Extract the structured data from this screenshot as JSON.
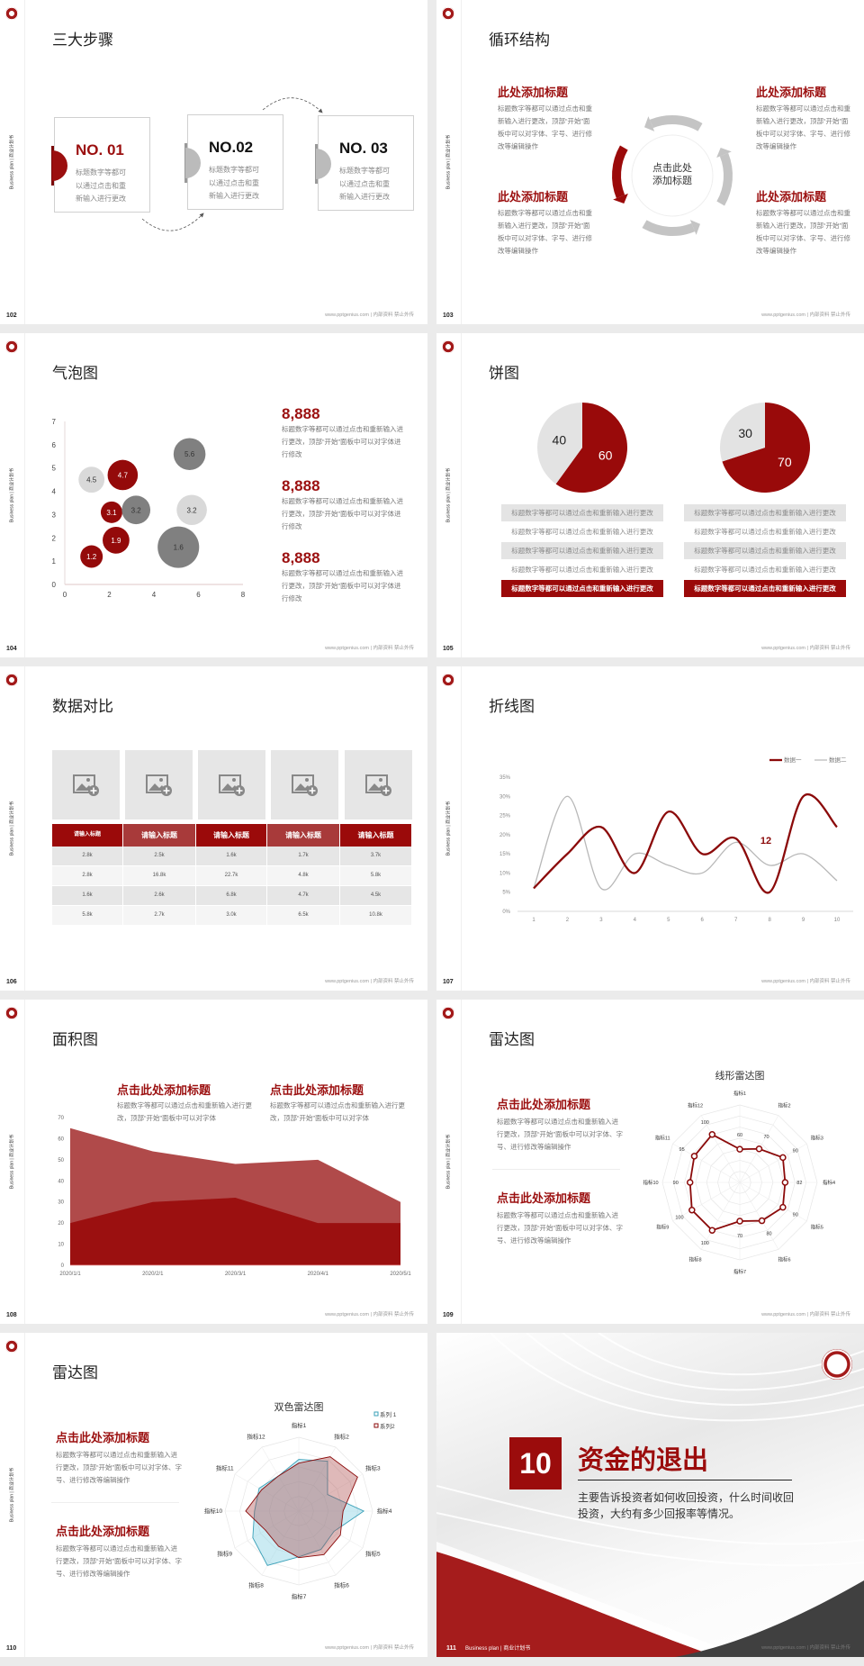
{
  "footer": {
    "url": "www.pptgenius.com | 内部资料 禁止外传",
    "side_label": "Business plan | 商业计划书"
  },
  "colors": {
    "accent": "#9b0f0f",
    "gray": "#bbbbbb",
    "dark_gray": "#808080",
    "light_gray": "#d9d9d9",
    "cyan": "#3aa0b8"
  },
  "slides": {
    "s102": {
      "page": "102",
      "title": "三大步骤",
      "steps": [
        {
          "no": "NO. 01",
          "text": "标题数字等都可以通过点击和重新输入进行更改",
          "active": true
        },
        {
          "no": "NO.02",
          "text": "标题数字等都可以通过点击和重新输入进行更改",
          "active": false
        },
        {
          "no": "NO. 03",
          "text": "标题数字等都可以通过点击和重新输入进行更改",
          "active": false
        }
      ]
    },
    "s103": {
      "page": "103",
      "title": "循环结构",
      "center": "点击此处添加标题",
      "blocks": [
        {
          "title": "此处添加标题",
          "text": "标题数字等都可以通过点击和重新输入进行更改，顶部“开始”面板中可以对字体、字号、进行修改等编辑操作"
        },
        {
          "title": "此处添加标题",
          "text": "标题数字等都可以通过点击和重新输入进行更改，顶部“开始”面板中可以对字体、字号、进行修改等编辑操作"
        },
        {
          "title": "此处添加标题",
          "text": "标题数字等都可以通过点击和重新输入进行更改，顶部“开始”面板中可以对字体、字号、进行修改等编辑操作"
        },
        {
          "title": "此处添加标题",
          "text": "标题数字等都可以通过点击和重新输入进行更改，顶部“开始”面板中可以对字体、字号、进行修改等编辑操作"
        }
      ]
    },
    "s104": {
      "page": "104",
      "title": "气泡图",
      "stats": [
        {
          "value": "8,888",
          "text": "标题数字等都可以通过点击和重新输入进行更改，顶部“开始”面板中可以对字体进行修改"
        },
        {
          "value": "8,888",
          "text": "标题数字等都可以通过点击和重新输入进行更改，顶部“开始”面板中可以对字体进行修改"
        },
        {
          "value": "8,888",
          "text": "标题数字等都可以通过点击和重新输入进行更改，顶部“开始”面板中可以对字体进行修改"
        }
      ]
    },
    "s105": {
      "page": "105",
      "title": "饼图",
      "rows_left": [
        "标题数字等都可以通过点击和重新输入进行更改",
        "标题数字等都可以通过点击和重新输入进行更改",
        "标题数字等都可以通过点击和重新输入进行更改",
        "标题数字等都可以通过点击和重新输入进行更改",
        "标题数字等都可以通过点击和重新输入进行更改"
      ],
      "rows_right": [
        "标题数字等都可以通过点击和重新输入进行更改",
        "标题数字等都可以通过点击和重新输入进行更改",
        "标题数字等都可以通过点击和重新输入进行更改",
        "标题数字等都可以通过点击和重新输入进行更改",
        "标题数字等都可以通过点击和重新输入进行更改"
      ]
    },
    "s106": {
      "page": "106",
      "title": "数据对比",
      "table": {
        "headers": [
          "请输入标题",
          "请输入标题",
          "请输入标题",
          "请输入标题",
          "请输入标题"
        ],
        "rows": [
          [
            "2.8k",
            "2.5k",
            "1.6k",
            "1.7k",
            "3.7k"
          ],
          [
            "2.8k",
            "16.8k",
            "22.7k",
            "4.8k",
            "5.8k"
          ],
          [
            "1.6k",
            "2.6k",
            "6.8k",
            "4.7k",
            "4.5k"
          ],
          [
            "5.8k",
            "2.7k",
            "3.0k",
            "6.5k",
            "10.8k"
          ]
        ]
      }
    },
    "s107": {
      "page": "107",
      "title": "折线图"
    },
    "s108": {
      "page": "108",
      "title": "面积图",
      "blocks": [
        {
          "title": "点击此处添加标题",
          "text": "标题数字等都可以通过点击和重新输入进行更改，顶部“开始”面板中可以对字体"
        },
        {
          "title": "点击此处添加标题",
          "text": "标题数字等都可以通过点击和重新输入进行更改，顶部“开始”面板中可以对字体"
        }
      ]
    },
    "s109": {
      "page": "109",
      "title": "雷达图",
      "blocks": [
        {
          "title": "点击此处添加标题",
          "text": "标题数字等都可以通过点击和重新输入进行更改，顶部“开始”面板中可以对字体、字号、进行修改等编辑操作"
        },
        {
          "title": "点击此处添加标题",
          "text": "标题数字等都可以通过点击和重新输入进行更改，顶部“开始”面板中可以对字体、字号、进行修改等编辑操作"
        }
      ]
    },
    "s110": {
      "page": "110",
      "title": "雷达图",
      "blocks": [
        {
          "title": "点击此处添加标题",
          "text": "标题数字等都可以通过点击和重新输入进行更改，顶部“开始”面板中可以对字体、字号、进行修改等编辑操作"
        },
        {
          "title": "点击此处添加标题",
          "text": "标题数字等都可以通过点击和重新输入进行更改，顶部“开始”面板中可以对字体、字号、进行修改等编辑操作"
        }
      ]
    },
    "s111": {
      "page": "111",
      "number": "10",
      "title": "资金的退出",
      "text": "主要告诉投资者如何收回投资，什么时间收回投资，大约有多少回报率等情况。",
      "footer_label": "Business plan | 商业计划书"
    }
  },
  "chart_data": [
    {
      "id": "bubble",
      "type": "scatter",
      "xlim": [
        0,
        8
      ],
      "ylim": [
        0,
        7
      ],
      "xticks": [
        "0",
        "2",
        "4",
        "6",
        "8"
      ],
      "yticks": [
        "0",
        "1",
        "2",
        "3",
        "4",
        "5",
        "6",
        "7"
      ],
      "points": [
        {
          "x": 1.2,
          "y": 4.5,
          "size": 3.0,
          "label": "4.5",
          "color": "light"
        },
        {
          "x": 2.6,
          "y": 4.7,
          "size": 3.5,
          "label": "4.7",
          "color": "red"
        },
        {
          "x": 5.6,
          "y": 5.6,
          "size": 3.7,
          "label": "5.6",
          "color": "dark"
        },
        {
          "x": 2.1,
          "y": 3.1,
          "size": 2.5,
          "label": "3.1",
          "color": "red"
        },
        {
          "x": 3.2,
          "y": 3.2,
          "size": 3.3,
          "label": "3.2",
          "color": "dark"
        },
        {
          "x": 5.7,
          "y": 3.2,
          "size": 3.5,
          "label": "3.2",
          "color": "light"
        },
        {
          "x": 2.3,
          "y": 1.9,
          "size": 3.1,
          "label": "1.9",
          "color": "red"
        },
        {
          "x": 1.2,
          "y": 1.2,
          "size": 2.6,
          "label": "1.2",
          "color": "red"
        },
        {
          "x": 5.1,
          "y": 1.6,
          "size": 4.8,
          "label": "1.6",
          "color": "dark"
        }
      ]
    },
    {
      "id": "pies",
      "type": "pie",
      "pies": [
        {
          "values": [
            60,
            40
          ],
          "labels": [
            "60",
            "40"
          ]
        },
        {
          "values": [
            70,
            30
          ],
          "labels": [
            "70",
            "30"
          ]
        }
      ]
    },
    {
      "id": "line",
      "type": "line",
      "categories": [
        "1",
        "2",
        "3",
        "4",
        "5",
        "6",
        "7",
        "8",
        "9",
        "10"
      ],
      "yticks": [
        "0%",
        "5%",
        "10%",
        "15%",
        "20%",
        "25%",
        "30%",
        "35%"
      ],
      "ylim": [
        0,
        35
      ],
      "series": [
        {
          "name": "数据一",
          "values": [
            6,
            15,
            22,
            10,
            26,
            15,
            19,
            5,
            30,
            22
          ],
          "color": "#8b0a0a"
        },
        {
          "name": "数据二",
          "values": [
            6,
            30,
            6,
            15,
            12,
            10,
            18,
            12,
            15,
            8
          ],
          "color": "#b8b8b8"
        }
      ],
      "annotation": "12",
      "legend": "top-right"
    },
    {
      "id": "area",
      "type": "area",
      "categories": [
        "2020/1/1",
        "2020/2/1",
        "2020/3/1",
        "2020/4/1",
        "2020/5/1"
      ],
      "yticks": [
        "0",
        "10",
        "20",
        "30",
        "40",
        "50",
        "60",
        "70"
      ],
      "ylim": [
        0,
        70
      ],
      "series": [
        {
          "values": [
            65,
            54,
            48,
            50,
            30
          ],
          "color": "#b04a4a"
        },
        {
          "values": [
            20,
            30,
            32,
            20,
            20
          ],
          "color": "#9b1010"
        }
      ]
    },
    {
      "id": "radar1",
      "type": "radar",
      "title": "线形雷达图",
      "axes": [
        "指标1",
        "指标2",
        "指标3",
        "指标4",
        "指标5",
        "指标6",
        "指标7",
        "指标8",
        "指标9",
        "指标10",
        "指标11",
        "指标12"
      ],
      "values": [
        60,
        70,
        90,
        82,
        90,
        80,
        70,
        100,
        100,
        90,
        95,
        100
      ],
      "rmax": 140
    },
    {
      "id": "radar2",
      "type": "radar",
      "title": "双色雷达图",
      "axes": [
        "指标1",
        "指标2",
        "指标3",
        "指标4",
        "指标5",
        "指标6",
        "指标7",
        "指标8",
        "指标9",
        "指标10",
        "指标11",
        "指标12"
      ],
      "rmax": 100,
      "legend": "top-right",
      "series": [
        {
          "name": "系列 1",
          "values": [
            70,
            78,
            45,
            88,
            55,
            60,
            62,
            85,
            72,
            60,
            62,
            55
          ],
          "color": "#3aa0b8"
        },
        {
          "name": "系列2",
          "values": [
            65,
            85,
            92,
            60,
            65,
            68,
            63,
            55,
            52,
            72,
            58,
            55
          ],
          "color": "#8b0a0a"
        }
      ]
    }
  ]
}
